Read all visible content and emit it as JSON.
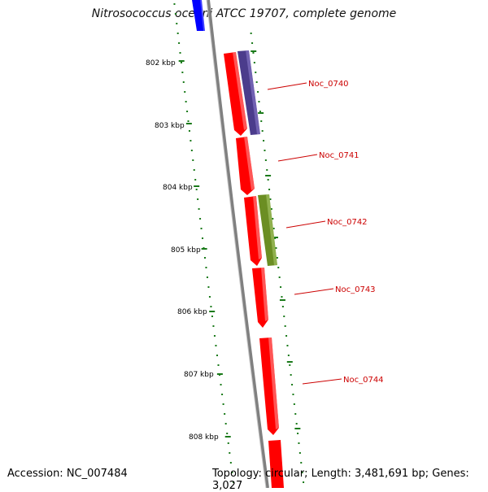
{
  "header": {
    "title": "Nitrosococcus oceani ATCC 19707, complete genome"
  },
  "footer": {
    "accession": "Accession: NC_007484",
    "summary": "Topology: circular; Length: 3,481,691 bp; Genes: 3,027"
  },
  "scale": {
    "ticks": [
      "802 kbp",
      "803 kbp",
      "804 kbp",
      "805 kbp",
      "806 kbp",
      "807 kbp",
      "808 kbp"
    ]
  },
  "genes": [
    {
      "label": "Noc_0740"
    },
    {
      "label": "Noc_0741"
    },
    {
      "label": "Noc_0742"
    },
    {
      "label": "Noc_0743"
    },
    {
      "label": "Noc_0744"
    }
  ],
  "colors": {
    "forward_cds": "#ff0000",
    "reverse_cds": "#0000ff",
    "gc_low": "#4b3c8c",
    "gc_other": "#6b8e23",
    "backbone": "#808080",
    "ruler": "#1a7a1a",
    "label": "#cc0000"
  }
}
